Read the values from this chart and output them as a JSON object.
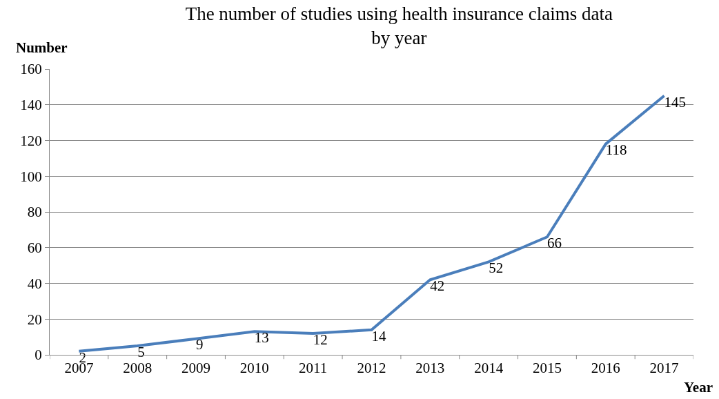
{
  "chart_data": {
    "type": "line",
    "title": "The number of studies using health insurance claims data by year",
    "xlabel": "Year",
    "ylabel": "Number",
    "categories": [
      "2007",
      "2008",
      "2009",
      "2010",
      "2011",
      "2012",
      "2013",
      "2014",
      "2015",
      "2016",
      "2017"
    ],
    "series": [
      {
        "color": "#4a7ebb",
        "values": [
          2,
          5,
          9,
          13,
          12,
          14,
          42,
          52,
          66,
          118,
          145
        ]
      }
    ],
    "ylim": [
      0,
      160
    ],
    "yticks": [
      0,
      20,
      40,
      60,
      80,
      100,
      120,
      140,
      160
    ],
    "grid": "y",
    "data_labels": true,
    "marker": "none",
    "line_style": "solid"
  }
}
